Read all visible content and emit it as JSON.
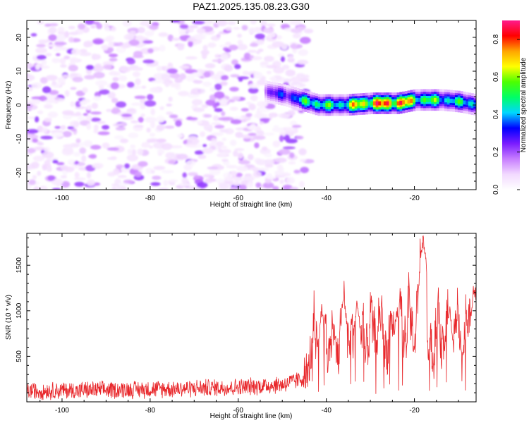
{
  "title": "PAZ1.2025.135.08.23.G30",
  "chart_data": [
    {
      "type": "heatmap",
      "xlabel": "Height of straight line (km)",
      "ylabel": "Frequency (Hz)",
      "xlim": [
        -108,
        -6
      ],
      "ylim": [
        -25,
        25
      ],
      "x_ticks": [
        -100,
        -80,
        -60,
        -40,
        -20
      ],
      "y_ticks": [
        -20,
        -10,
        0,
        10,
        20
      ],
      "grid": false,
      "description_of_values": "normalized spectral amplitude vs height and frequency",
      "noise_region": {
        "x_range": [
          -108,
          -44
        ],
        "y_range": [
          -25,
          25
        ],
        "typical_amplitude": 0.15
      },
      "ridge": {
        "x_range": [
          -54,
          -6
        ],
        "center_frequency_points": [
          [
            -54,
            4
          ],
          [
            -50,
            3
          ],
          [
            -46,
            1.5
          ],
          [
            -42,
            0
          ],
          [
            -36,
            0
          ],
          [
            -30,
            0.5
          ],
          [
            -24,
            0.5
          ],
          [
            -20,
            1.5
          ],
          [
            -14,
            1.5
          ],
          [
            -10,
            1
          ],
          [
            -6,
            0
          ]
        ],
        "amplitude_points": [
          [
            -54,
            0.25
          ],
          [
            -48,
            0.4
          ],
          [
            -43,
            0.6
          ],
          [
            -38,
            0.5
          ],
          [
            -34,
            0.7
          ],
          [
            -28,
            0.85
          ],
          [
            -24,
            0.9
          ],
          [
            -20,
            0.65
          ],
          [
            -15,
            0.55
          ],
          [
            -10,
            0.5
          ],
          [
            -6,
            0.55
          ]
        ]
      },
      "colorbar": {
        "label": "Normalized spectral amplitude",
        "range": [
          0,
          0.9
        ],
        "ticks": [
          "0.0",
          "0.2",
          "0.4",
          "0.6",
          "0.8"
        ],
        "colors": [
          "#ffffff",
          "#f2d9ff",
          "#c77dff",
          "#7a1cff",
          "#0000ff",
          "#00d7ff",
          "#00ff66",
          "#4cff00",
          "#ffff00",
          "#ffa500",
          "#ff0000",
          "#ff1a8c"
        ]
      }
    },
    {
      "type": "line",
      "xlabel": "Height of straight line (km)",
      "ylabel": "SNR (10 * v/v)",
      "xlim": [
        -108,
        -6
      ],
      "ylim": [
        0,
        1850
      ],
      "x_ticks": [
        -100,
        -80,
        -60,
        -40,
        -20
      ],
      "y_ticks": [
        500,
        1000,
        1500
      ],
      "grid": false,
      "series": [
        {
          "color": "#e8262a",
          "envelope": [
            [
              -108,
              120
            ],
            [
              -90,
              130
            ],
            [
              -80,
              140
            ],
            [
              -70,
              150
            ],
            [
              -60,
              160
            ],
            [
              -50,
              190
            ],
            [
              -45,
              260
            ],
            [
              -43,
              700
            ],
            [
              -41,
              750
            ],
            [
              -38,
              650
            ],
            [
              -36,
              850
            ],
            [
              -34,
              600
            ],
            [
              -30,
              750
            ],
            [
              -28,
              850
            ],
            [
              -26,
              650
            ],
            [
              -24,
              800
            ],
            [
              -22,
              900
            ],
            [
              -20,
              800
            ],
            [
              -18.5,
              1300
            ],
            [
              -18,
              1100
            ],
            [
              -17,
              500
            ],
            [
              -15,
              750
            ],
            [
              -12,
              850
            ],
            [
              -9,
              700
            ],
            [
              -7,
              950
            ],
            [
              -6,
              1050
            ]
          ],
          "peaks": [
            [
              -41,
              1050
            ],
            [
              -36,
              1200
            ],
            [
              -33,
              1150
            ],
            [
              -24,
              1050
            ],
            [
              -18,
              1850
            ],
            [
              -12,
              1050
            ],
            [
              -6.5,
              1300
            ]
          ],
          "noise_amplitude": 110
        }
      ]
    }
  ]
}
